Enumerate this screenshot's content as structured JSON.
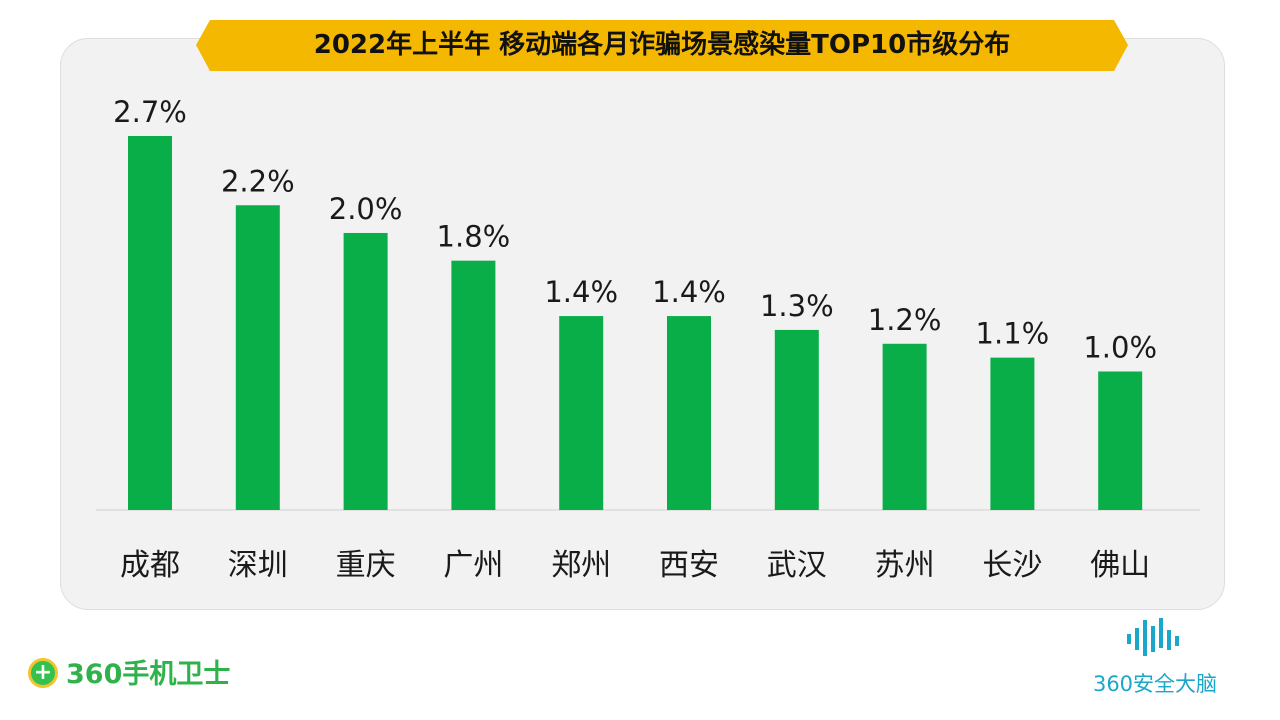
{
  "title": "2022年上半年 移动端各月诈骗场景感染量TOP10市级分布",
  "logos": {
    "left_text": "360手机卫士",
    "left_icon": "plus-circle-icon",
    "right_text": "360安全大脑",
    "right_icon": "sound-wave-icon"
  },
  "colors": {
    "bar": "#0aae48",
    "banner": "#f5b800",
    "panel": "#f2f2f2"
  },
  "chart_data": {
    "type": "bar",
    "categories": [
      "成都",
      "深圳",
      "重庆",
      "广州",
      "郑州",
      "西安",
      "武汉",
      "苏州",
      "长沙",
      "佛山"
    ],
    "values": [
      2.7,
      2.2,
      2.0,
      1.8,
      1.4,
      1.4,
      1.3,
      1.2,
      1.1,
      1.0
    ],
    "labels": [
      "2.7%",
      "2.2%",
      "2.0%",
      "1.8%",
      "1.4%",
      "1.4%",
      "1.3%",
      "1.2%",
      "1.1%",
      "1.0%"
    ],
    "ylim": [
      0,
      2.7
    ],
    "grid": false,
    "legend": "none"
  }
}
